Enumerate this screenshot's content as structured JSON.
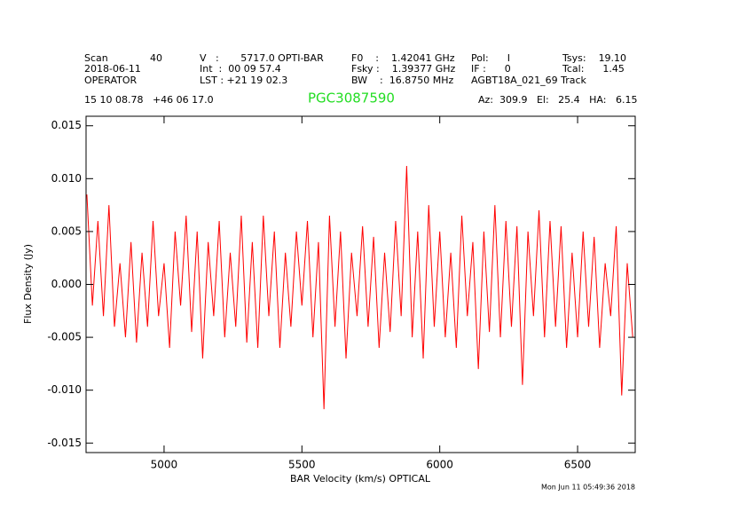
{
  "chart_data": {
    "type": "line",
    "title": "PGC3087590",
    "header": {
      "scan_label": "Scan",
      "scan": "40",
      "date": "2018-06-11",
      "observer": "OPERATOR",
      "v": "V   :       5717.0 OPTI-BAR",
      "int": "Int  :  00 09 57.4",
      "lst": "LST : +21 19 02.3",
      "f0": "F0    :    1.42041 GHz",
      "fsky": "Fsky :    1.39377 GHz",
      "bw": "BW    :  16.8750 MHz",
      "pol": "Pol:      I",
      "if": "IF :      0",
      "project": "AGBT18A_021_69 Track",
      "tsys": "Tsys:    19.10",
      "tcal": "Tcal:      1.45",
      "coords": "15 10 08.78   +46 06 17.0",
      "azelha": "Az:  309.9   El:   25.4   HA:   6.15",
      "timestamp": "Mon Jun 11 05:49:36 2018"
    },
    "x_label": "BAR Velocity (km/s) OPTICAL",
    "y_label": "Flux Density (Jy)",
    "color": "#ff0000",
    "x": [
      4720,
      4740,
      4760,
      4780,
      4800,
      4820,
      4840,
      4860,
      4880,
      4900,
      4920,
      4940,
      4960,
      4980,
      5000,
      5020,
      5040,
      5060,
      5080,
      5100,
      5120,
      5140,
      5160,
      5180,
      5200,
      5220,
      5240,
      5260,
      5280,
      5300,
      5320,
      5340,
      5360,
      5380,
      5400,
      5420,
      5440,
      5460,
      5480,
      5500,
      5520,
      5540,
      5560,
      5580,
      5600,
      5620,
      5640,
      5660,
      5680,
      5700,
      5720,
      5740,
      5760,
      5780,
      5800,
      5820,
      5840,
      5860,
      5880,
      5900,
      5920,
      5940,
      5960,
      5980,
      6000,
      6020,
      6040,
      6060,
      6080,
      6100,
      6120,
      6140,
      6160,
      6180,
      6200,
      6220,
      6240,
      6260,
      6280,
      6300,
      6320,
      6340,
      6360,
      6380,
      6400,
      6420,
      6440,
      6460,
      6480,
      6500,
      6520,
      6540,
      6560,
      6580,
      6600,
      6620,
      6640,
      6660,
      6680,
      6700
    ],
    "values": [
      0.0085,
      -0.002,
      0.006,
      -0.003,
      0.0075,
      -0.004,
      0.002,
      -0.005,
      0.004,
      -0.0055,
      0.003,
      -0.004,
      0.006,
      -0.003,
      0.002,
      -0.006,
      0.005,
      -0.002,
      0.0065,
      -0.0045,
      0.005,
      -0.007,
      0.004,
      -0.003,
      0.006,
      -0.005,
      0.003,
      -0.004,
      0.0065,
      -0.0055,
      0.004,
      -0.006,
      0.0065,
      -0.003,
      0.005,
      -0.006,
      0.003,
      -0.004,
      0.005,
      -0.002,
      0.006,
      -0.005,
      0.004,
      -0.0118,
      0.0065,
      -0.004,
      0.005,
      -0.007,
      0.003,
      -0.003,
      0.0055,
      -0.004,
      0.0045,
      -0.006,
      0.003,
      -0.0045,
      0.006,
      -0.003,
      0.0112,
      -0.005,
      0.005,
      -0.007,
      0.0075,
      -0.004,
      0.005,
      -0.005,
      0.003,
      -0.006,
      0.0065,
      -0.003,
      0.004,
      -0.008,
      0.005,
      -0.0045,
      0.0075,
      -0.005,
      0.006,
      -0.004,
      0.0055,
      -0.0095,
      0.005,
      -0.003,
      0.007,
      -0.005,
      0.006,
      -0.004,
      0.0055,
      -0.006,
      0.003,
      -0.005,
      0.005,
      -0.004,
      0.0045,
      -0.006,
      0.002,
      -0.003,
      0.0055,
      -0.0105,
      0.002,
      -0.005
    ],
    "xlim": [
      4717,
      6709
    ],
    "ylim": [
      -0.0159,
      0.0159
    ],
    "xticks": [
      5000,
      5500,
      6000,
      6500
    ],
    "yticks": [
      0.015,
      {
        "value": 0.01,
        "label": "0.010"
      },
      0.005,
      {
        "value": 0,
        "label": "0.000"
      },
      -0.005,
      {
        "value": -0.01,
        "label": "-0.010"
      },
      -0.015
    ]
  }
}
